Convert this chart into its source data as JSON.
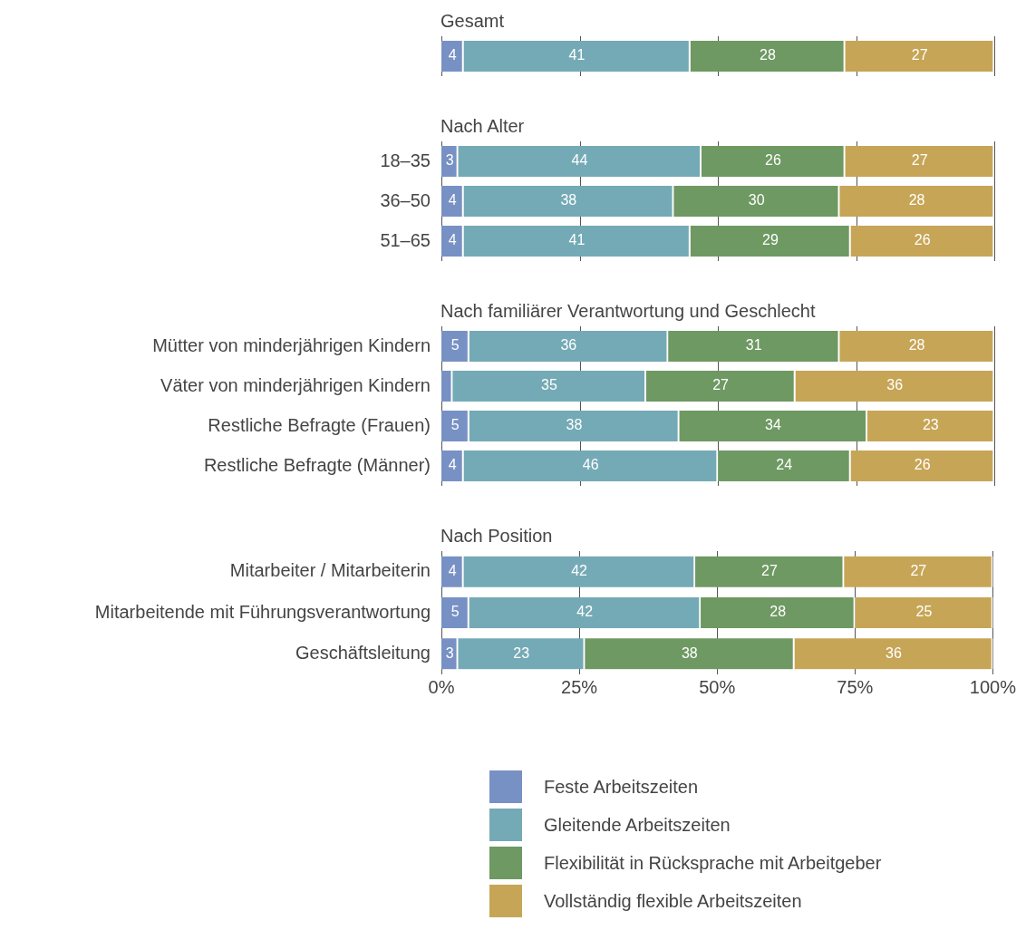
{
  "chart_data": [
    {
      "type": "bar",
      "orientation": "horizontal",
      "stacked": true,
      "title": "Gesamt",
      "categories": [
        null
      ],
      "xlim": [
        0,
        100
      ],
      "xticks": [
        {
          "value": 0,
          "label": null
        },
        {
          "value": 25,
          "label": null
        },
        {
          "value": 50,
          "label": null
        },
        {
          "value": 75,
          "label": null
        },
        {
          "value": 100,
          "label": null
        }
      ],
      "tick_labels": "y",
      "grid": "x",
      "data_labels": true,
      "series": [
        {
          "color": "#7891c4",
          "values": [
            4
          ]
        },
        {
          "color": "#74aab5",
          "values": [
            41
          ]
        },
        {
          "color": "#6e9962",
          "values": [
            28
          ]
        },
        {
          "color": "#c7a556",
          "values": [
            27
          ]
        }
      ]
    },
    {
      "type": "bar",
      "orientation": "horizontal",
      "stacked": true,
      "title": "Nach Alter",
      "categories": [
        "18–35",
        "36–50",
        "51–65"
      ],
      "xlim": [
        0,
        100
      ],
      "xticks": [
        {
          "value": 0,
          "label": null
        },
        {
          "value": 25,
          "label": null
        },
        {
          "value": 50,
          "label": null
        },
        {
          "value": 75,
          "label": null
        },
        {
          "value": 100,
          "label": null
        }
      ],
      "tick_labels": "y",
      "grid": "x",
      "data_labels": true,
      "series": [
        {
          "color": "#7891c4",
          "values": [
            3,
            4,
            4
          ]
        },
        {
          "color": "#74aab5",
          "values": [
            44,
            38,
            41
          ]
        },
        {
          "color": "#6e9962",
          "values": [
            26,
            30,
            29
          ]
        },
        {
          "color": "#c7a556",
          "values": [
            27,
            28,
            26
          ]
        }
      ]
    },
    {
      "type": "bar",
      "orientation": "horizontal",
      "stacked": true,
      "title": "Nach familiärer Verantwortung und Geschlecht",
      "categories": [
        "Mütter von minderjährigen Kindern",
        "Väter von minderjährigen Kindern",
        "Restliche Befragte (Frauen)",
        "Restliche Befragte (Männer)"
      ],
      "xlim": [
        0,
        100
      ],
      "xticks": [
        {
          "value": 0,
          "label": null
        },
        {
          "value": 25,
          "label": null
        },
        {
          "value": 50,
          "label": null
        },
        {
          "value": 75,
          "label": null
        },
        {
          "value": 100,
          "label": null
        }
      ],
      "tick_labels": "y",
      "grid": "x",
      "series": [
        {
          "color": "#7891c4",
          "values": [
            5,
            2,
            5,
            4
          ],
          "value_labels": [
            "5",
            null,
            "5",
            "4"
          ]
        },
        {
          "color": "#74aab5",
          "values": [
            36,
            35,
            38,
            46
          ],
          "value_labels": [
            "36",
            "35",
            "38",
            "46"
          ]
        },
        {
          "color": "#6e9962",
          "values": [
            31,
            27,
            34,
            24
          ],
          "value_labels": [
            "31",
            "27",
            "34",
            "24"
          ]
        },
        {
          "color": "#c7a556",
          "values": [
            28,
            36,
            23,
            26
          ],
          "value_labels": [
            "28",
            "36",
            "23",
            "26"
          ]
        }
      ]
    },
    {
      "type": "bar",
      "orientation": "horizontal",
      "stacked": true,
      "title": "Nach Position",
      "categories": [
        "Mitarbeiter / Mitarbeiterin",
        "Mitarbeitende mit Führungsverantwortung",
        "Geschäftsleitung"
      ],
      "xlim": [
        0,
        100
      ],
      "xticks": [
        {
          "value": 0,
          "label": "0%"
        },
        {
          "value": 25,
          "label": "25%"
        },
        {
          "value": 50,
          "label": "50%"
        },
        {
          "value": 75,
          "label": "75%"
        },
        {
          "value": 100,
          "label": "100%"
        }
      ],
      "grid": "x",
      "data_labels": true,
      "legend": "bottom",
      "series": [
        {
          "name": "Feste Arbeitszeiten",
          "color": "#7891c4",
          "values": [
            4,
            5,
            3
          ]
        },
        {
          "name": "Gleitende Arbeitszeiten",
          "color": "#74aab5",
          "values": [
            42,
            42,
            23
          ]
        },
        {
          "name": "Flexibilität in Rücksprache mit Arbeitgeber",
          "color": "#6e9962",
          "values": [
            27,
            28,
            38
          ]
        },
        {
          "name": "Vollständig flexible Arbeitszeiten",
          "color": "#c7a556",
          "values": [
            27,
            25,
            36
          ]
        }
      ]
    }
  ]
}
